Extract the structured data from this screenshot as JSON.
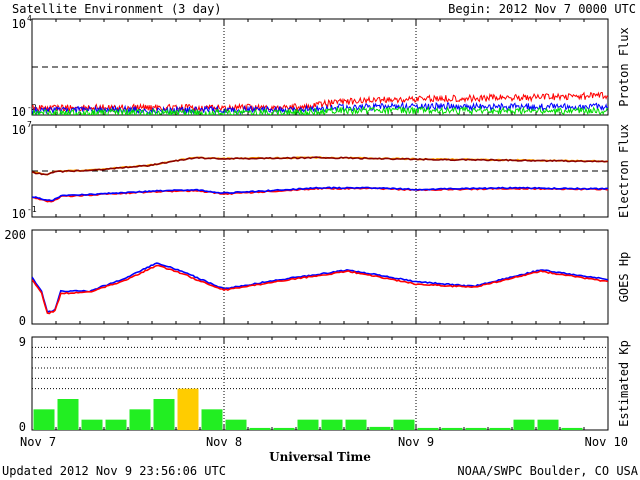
{
  "header": {
    "title": "Satellite Environment (3 day)",
    "begin": "Begin:  2012 Nov 7 0000 UTC"
  },
  "footer": {
    "updated": "Updated 2012 Nov  9 23:56:06 UTC",
    "credit": "NOAA/SWPC Boulder, CO USA"
  },
  "chart_data": [
    {
      "type": "line",
      "ylabel": "Proton Flux",
      "yscale": "log",
      "ylim": [
        0.01,
        10000
      ],
      "tick_labels": {
        "top": "10",
        "top_exp": "4",
        "bottom": "10",
        "bottom_exp": "-2"
      },
      "threshold": 10,
      "colors": [
        "#ff0000",
        "#0000ff",
        "#00dd00"
      ],
      "series": [
        {
          "color": "#ff0000",
          "x": [
            0,
            0.5,
            1.0,
            1.45,
            1.6,
            2.0,
            2.5,
            3.0
          ],
          "y": [
            0.027,
            0.028,
            0.027,
            0.033,
            0.07,
            0.1,
            0.12,
            0.16
          ]
        },
        {
          "color": "#0000ff",
          "x": [
            0,
            0.5,
            1.0,
            1.45,
            1.6,
            2.0,
            2.5,
            3.0
          ],
          "y": [
            0.02,
            0.021,
            0.02,
            0.022,
            0.03,
            0.035,
            0.034,
            0.032
          ]
        },
        {
          "color": "#00dd00",
          "x": [
            0,
            0.5,
            1.0,
            1.45,
            1.6,
            2.0,
            2.5,
            3.0
          ],
          "y": [
            0.013,
            0.014,
            0.013,
            0.015,
            0.019,
            0.019,
            0.018,
            0.018
          ]
        }
      ]
    },
    {
      "type": "line",
      "ylabel": "Electron Flux",
      "yscale": "log",
      "ylim": [
        0.1,
        10000000
      ],
      "tick_labels": {
        "top": "10",
        "top_exp": "7",
        "bottom": "10",
        "bottom_exp": "-1"
      },
      "threshold": 1000,
      "colors": [
        "#ffa500",
        "#8b0000",
        "#ff0000",
        "#0000ff"
      ],
      "series": [
        {
          "color": "#ffa500",
          "x": [
            0,
            0.08,
            0.12,
            0.3,
            0.6,
            0.85,
            1.0,
            1.5,
            2.0,
            2.5,
            3.0
          ],
          "y": [
            800,
            500,
            900,
            1200,
            3000,
            15000,
            12000,
            15000,
            11000,
            9000,
            7000
          ]
        },
        {
          "color": "#8b0000",
          "x": [
            0,
            0.08,
            0.12,
            0.3,
            0.6,
            0.85,
            1.0,
            1.5,
            2.0,
            2.5,
            3.0
          ],
          "y": [
            750,
            480,
            850,
            1150,
            2900,
            14000,
            11500,
            14500,
            10500,
            8500,
            6500
          ]
        },
        {
          "color": "#ff0000",
          "x": [
            0,
            0.1,
            0.15,
            0.3,
            0.6,
            0.85,
            1.0,
            1.5,
            1.8,
            2.0,
            2.5,
            3.0
          ],
          "y": [
            5,
            2,
            6,
            8,
            15,
            20,
            10,
            30,
            30,
            22,
            30,
            25
          ]
        },
        {
          "color": "#0000ff",
          "x": [
            0,
            0.1,
            0.15,
            0.3,
            0.6,
            0.85,
            1.0,
            1.5,
            1.8,
            2.0,
            2.5,
            3.0
          ],
          "y": [
            6,
            2.5,
            7,
            9,
            17,
            24,
            12,
            35,
            33,
            25,
            34,
            28
          ]
        }
      ]
    },
    {
      "type": "line",
      "ylabel": "GOES Hp",
      "ylim": [
        0,
        200
      ],
      "tick_labels": {
        "top": "200",
        "bottom": "0"
      },
      "colors": [
        "#0000ff",
        "#ff0000"
      ],
      "series": [
        {
          "color": "#0000ff",
          "x": [
            0,
            0.05,
            0.08,
            0.12,
            0.15,
            0.3,
            0.5,
            0.65,
            0.8,
            0.85,
            1.0,
            1.3,
            1.65,
            2.0,
            2.3,
            2.65,
            3.0
          ],
          "y": [
            100,
            70,
            25,
            30,
            70,
            70,
            100,
            130,
            110,
            100,
            75,
            95,
            115,
            90,
            80,
            115,
            95
          ]
        },
        {
          "color": "#ff0000",
          "x": [
            0,
            0.05,
            0.08,
            0.12,
            0.15,
            0.3,
            0.5,
            0.65,
            0.8,
            0.85,
            1.0,
            1.3,
            1.65,
            2.0,
            2.3,
            2.65,
            3.0
          ],
          "y": [
            95,
            65,
            22,
            28,
            65,
            68,
            95,
            125,
            105,
            95,
            72,
            92,
            112,
            85,
            78,
            112,
            90
          ]
        }
      ]
    },
    {
      "type": "bar",
      "ylabel": "Estimated Kp",
      "ylim": [
        0,
        9
      ],
      "tick_labels": {
        "top": "9",
        "bottom": "0"
      },
      "dotted_levels": [
        4,
        5,
        6,
        7,
        8
      ],
      "bar_colors": {
        "normal": "#22ee22",
        "elevated": "#ffcc00"
      },
      "values": [
        2,
        3,
        1,
        1,
        2,
        3,
        4,
        2,
        1,
        0.2,
        0.2,
        1,
        1,
        1,
        0.3,
        1,
        0.2,
        0.2,
        0.2,
        0.2,
        1,
        1,
        0.2,
        0
      ]
    }
  ],
  "x_axis": {
    "label": "Universal Time",
    "ticks": [
      {
        "value": 0,
        "label": "Nov 7"
      },
      {
        "value": 1,
        "label": "Nov 8"
      },
      {
        "value": 2,
        "label": "Nov 9"
      },
      {
        "value": 3,
        "label": "Nov 10"
      }
    ],
    "xlim": [
      0,
      3
    ]
  }
}
